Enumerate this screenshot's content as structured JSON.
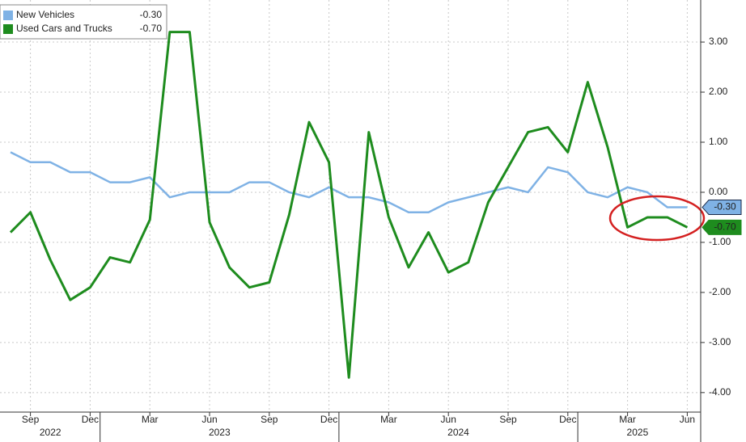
{
  "chart_data": {
    "type": "line",
    "x": [
      "2022-08",
      "2022-09",
      "2022-10",
      "2022-11",
      "2022-12",
      "2023-01",
      "2023-02",
      "2023-03",
      "2023-04",
      "2023-05",
      "2023-06",
      "2023-07",
      "2023-08",
      "2023-09",
      "2023-10",
      "2023-11",
      "2023-12",
      "2024-01",
      "2024-02",
      "2024-03",
      "2024-04",
      "2024-05",
      "2024-06",
      "2024-07",
      "2024-08",
      "2024-09",
      "2024-10",
      "2024-11",
      "2024-12",
      "2025-01",
      "2025-02",
      "2025-03",
      "2025-04",
      "2025-05",
      "2025-06"
    ],
    "series": [
      {
        "name": "New Vehicles",
        "color": "#7fb2e5",
        "last_value_label": "-0.30",
        "values": [
          0.8,
          0.6,
          0.6,
          0.4,
          0.4,
          0.2,
          0.2,
          0.3,
          -0.1,
          0.0,
          0.0,
          0.0,
          0.2,
          0.2,
          0.0,
          -0.1,
          0.1,
          -0.1,
          -0.1,
          -0.2,
          -0.4,
          -0.4,
          -0.2,
          -0.1,
          0.0,
          0.1,
          0.0,
          0.5,
          0.4,
          0.0,
          -0.1,
          0.1,
          0.0,
          -0.3,
          -0.3
        ]
      },
      {
        "name": "Used Cars and Trucks",
        "color": "#1e8c1e",
        "last_value_label": "-0.70",
        "values": [
          -0.8,
          -0.4,
          -1.35,
          -2.15,
          -1.9,
          -1.3,
          -1.4,
          -0.55,
          3.2,
          3.2,
          -0.6,
          -1.5,
          -1.9,
          -1.8,
          -0.45,
          1.4,
          0.6,
          -3.7,
          1.2,
          -0.5,
          -1.5,
          -0.8,
          -1.6,
          -1.4,
          -0.2,
          0.5,
          1.2,
          1.3,
          0.8,
          2.2,
          0.9,
          -0.7,
          -0.5,
          -0.5,
          -0.7
        ]
      }
    ],
    "xticks": [
      {
        "value": "2022-09",
        "label": "Sep"
      },
      {
        "value": "2022-12",
        "label": "Dec"
      },
      {
        "value": "2023-03",
        "label": "Mar"
      },
      {
        "value": "2023-06",
        "label": "Jun"
      },
      {
        "value": "2023-09",
        "label": "Sep"
      },
      {
        "value": "2023-12",
        "label": "Dec"
      },
      {
        "value": "2024-03",
        "label": "Mar"
      },
      {
        "value": "2024-06",
        "label": "Jun"
      },
      {
        "value": "2024-09",
        "label": "Sep"
      },
      {
        "value": "2024-12",
        "label": "Dec"
      },
      {
        "value": "2025-03",
        "label": "Mar"
      },
      {
        "value": "2025-06",
        "label": "Jun"
      }
    ],
    "xgroups": [
      2022,
      2023,
      2024,
      2025
    ],
    "ylim": [
      -4.39,
      3.84
    ],
    "yticks": [
      {
        "value": 3,
        "label": "3.00"
      },
      {
        "value": 2,
        "label": "2.00"
      },
      {
        "value": 1,
        "label": "1.00"
      },
      {
        "value": 0,
        "label": "0.00"
      },
      {
        "value": -1,
        "label": "-1.00"
      },
      {
        "value": -2,
        "label": "-2.00"
      },
      {
        "value": -3,
        "label": "-3.00"
      },
      {
        "value": -4,
        "label": "-4.00"
      }
    ],
    "grid": true,
    "legend": "upper left"
  }
}
